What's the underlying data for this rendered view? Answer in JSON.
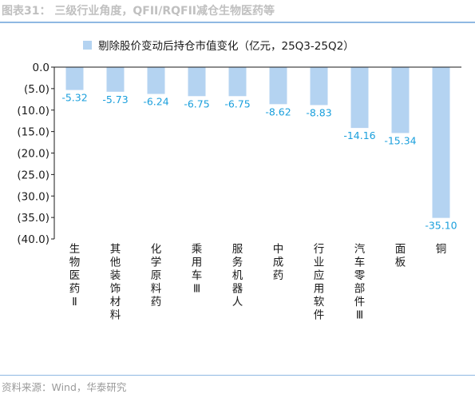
{
  "figure": {
    "title": "图表31： 三级行业角度，QFII/RQFII减仓生物医药等",
    "source": "资料来源：Wind，华泰研究"
  },
  "colors": {
    "bar": "#b4d3f1",
    "value_label": "#1a9fdc",
    "axis": "#1a1a1a",
    "rule": "#8fb8e3"
  },
  "chart_data": {
    "type": "bar",
    "title": "",
    "xlabel": "",
    "ylabel": "",
    "legend": "剔除股价变动后持仓市值变化（亿元，25Q3-25Q2）",
    "legend_position": "top-left",
    "grid": false,
    "ylim": [
      -40,
      0
    ],
    "yticks": [
      0,
      -5,
      -10,
      -15,
      -20,
      -25,
      -30,
      -35,
      -40
    ],
    "ytick_labels": [
      "0.0",
      "(5.0)",
      "(10.0)",
      "(15.0)",
      "(20.0)",
      "(25.0)",
      "(30.0)",
      "(35.0)",
      "(40.0)"
    ],
    "categories": [
      "生物医药Ⅱ",
      "其他装饰材料",
      "化学原料药",
      "乘用车Ⅲ",
      "服务机器人",
      "中成药",
      "行业应用软件",
      "汽车零部件Ⅲ",
      "面板",
      "铜"
    ],
    "values": [
      -5.32,
      -5.73,
      -6.24,
      -6.75,
      -6.75,
      -8.62,
      -8.83,
      -14.16,
      -15.34,
      -35.1
    ],
    "value_labels": [
      "-5.32",
      "-5.73",
      "-6.24",
      "-6.75",
      "-6.75",
      "-8.62",
      "-8.83",
      "-14.16",
      "-15.34",
      "-35.10"
    ]
  }
}
